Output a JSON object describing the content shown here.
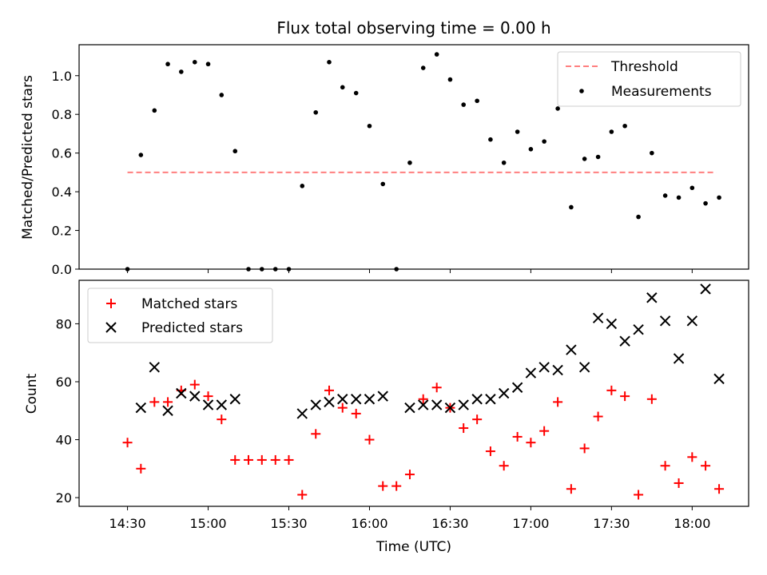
{
  "chart_data": [
    {
      "type": "scatter",
      "title": "Flux total observing time = 0.00 h",
      "xlabel": "",
      "ylabel": "Matched/Predicted stars",
      "ylim": [
        0,
        1.16
      ],
      "yticks": [
        "0.0",
        "0.2",
        "0.4",
        "0.6",
        "0.8",
        "1.0"
      ],
      "xlim": [
        14.2,
        18.35
      ],
      "legend_position": "top-right",
      "threshold": {
        "name": "Threshold",
        "value": 0.5,
        "x_start": 14.5,
        "x_end": 18.15,
        "color": "#ff7f7f"
      },
      "series": [
        {
          "name": "Measurements",
          "color": "#000000",
          "x": [
            14.5,
            14.583,
            14.667,
            14.75,
            14.833,
            14.917,
            15.0,
            15.083,
            15.167,
            15.25,
            15.333,
            15.417,
            15.5,
            15.583,
            15.667,
            15.75,
            15.833,
            15.917,
            16.0,
            16.083,
            16.167,
            16.25,
            16.333,
            16.417,
            16.5,
            16.583,
            16.667,
            16.75,
            16.833,
            16.917,
            17.0,
            17.083,
            17.167,
            17.25,
            17.333,
            17.417,
            17.5,
            17.583,
            17.667,
            17.75,
            17.833,
            17.917,
            18.0,
            18.083,
            18.167
          ],
          "y": [
            0.0,
            0.59,
            0.82,
            1.06,
            1.02,
            1.07,
            1.06,
            0.9,
            0.61,
            0.0,
            0.0,
            0.0,
            0.0,
            0.43,
            0.81,
            1.07,
            0.94,
            0.91,
            0.74,
            0.44,
            0.0,
            0.55,
            1.04,
            1.11,
            0.98,
            0.85,
            0.87,
            0.67,
            0.55,
            0.71,
            0.62,
            0.66,
            0.83,
            0.32,
            0.57,
            0.58,
            0.71,
            0.74,
            0.27,
            0.6,
            0.38,
            0.37,
            0.42,
            0.34,
            0.37
          ]
        }
      ]
    },
    {
      "type": "scatter",
      "title": "",
      "xlabel": "Time (UTC)",
      "ylabel": "Count",
      "ylim": [
        17,
        95
      ],
      "yticks": [
        "20",
        "40",
        "60",
        "80"
      ],
      "xlim": [
        14.2,
        18.35
      ],
      "xticks": [
        "14:30",
        "15:00",
        "15:30",
        "16:00",
        "16:30",
        "17:00",
        "17:30",
        "18:00"
      ],
      "legend_position": "top-left",
      "series": [
        {
          "name": "Matched stars",
          "marker": "+",
          "color": "#ff0000",
          "x": [
            14.5,
            14.583,
            14.667,
            14.75,
            14.833,
            14.917,
            15.0,
            15.083,
            15.167,
            15.25,
            15.333,
            15.417,
            15.5,
            15.583,
            15.667,
            15.75,
            15.833,
            15.917,
            16.0,
            16.083,
            16.167,
            16.25,
            16.333,
            16.417,
            16.5,
            16.583,
            16.667,
            16.75,
            16.833,
            16.917,
            17.0,
            17.083,
            17.167,
            17.25,
            17.333,
            17.417,
            17.5,
            17.583,
            17.667,
            17.75,
            17.833,
            17.917,
            18.0,
            18.083,
            18.167
          ],
          "y": [
            39,
            30,
            53,
            53,
            57,
            59,
            55,
            47,
            33,
            33,
            33,
            33,
            33,
            21,
            42,
            57,
            51,
            49,
            40,
            24,
            24,
            28,
            54,
            58,
            51,
            44,
            47,
            36,
            31,
            41,
            39,
            43,
            53,
            23,
            37,
            48,
            57,
            55,
            21,
            54,
            31,
            25,
            34,
            31,
            23
          ]
        },
        {
          "name": "Predicted stars",
          "marker": "x",
          "color": "#000000",
          "x": [
            14.583,
            14.667,
            14.75,
            14.833,
            14.917,
            15.0,
            15.083,
            15.167,
            15.583,
            15.667,
            15.75,
            15.833,
            15.917,
            16.0,
            16.083,
            16.25,
            16.333,
            16.417,
            16.5,
            16.583,
            16.667,
            16.75,
            16.833,
            16.917,
            17.0,
            17.083,
            17.167,
            17.25,
            17.333,
            17.417,
            17.5,
            17.583,
            17.667,
            17.75,
            17.833,
            17.917,
            18.0,
            18.083,
            18.167
          ],
          "y": [
            51,
            65,
            50,
            56,
            55,
            52,
            52,
            54,
            49,
            52,
            53,
            54,
            54,
            54,
            55,
            51,
            52,
            52,
            51,
            52,
            54,
            54,
            56,
            58,
            63,
            65,
            64,
            71,
            65,
            82,
            80,
            74,
            78,
            89,
            81,
            68,
            81,
            92,
            61
          ]
        }
      ]
    }
  ]
}
